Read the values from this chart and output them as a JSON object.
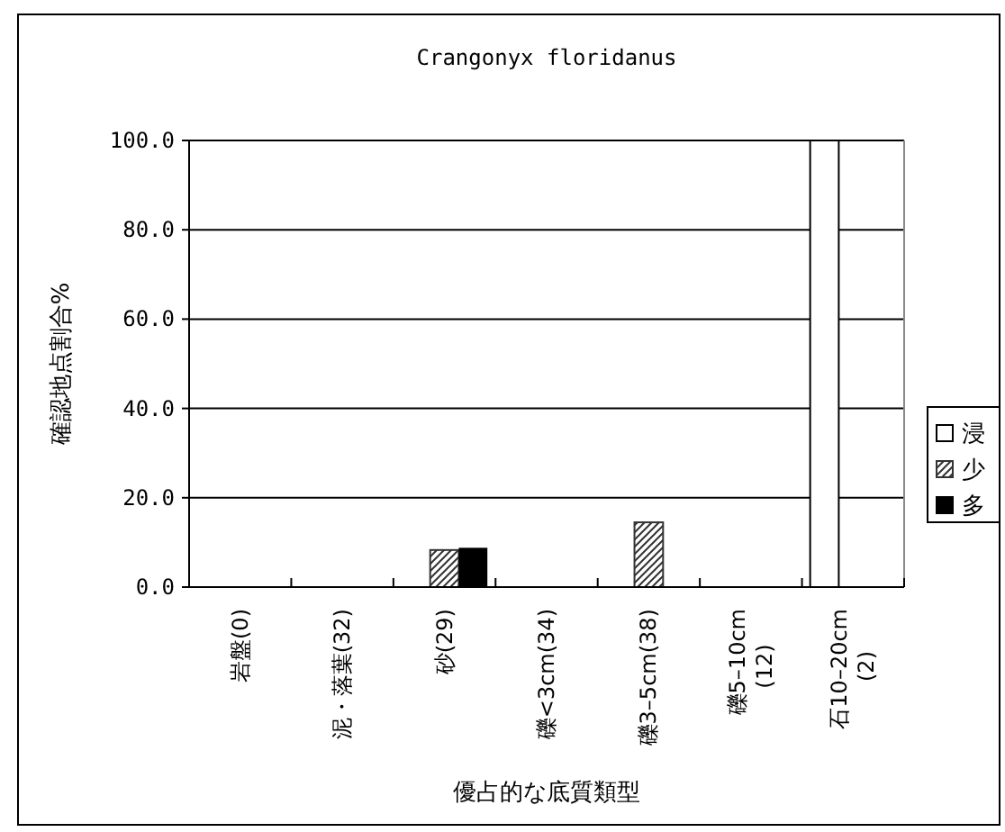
{
  "chart_data": {
    "type": "bar",
    "title": "Crangonyx floridanus",
    "xlabel": "優占的な底質類型",
    "ylabel": "確認地点割合%",
    "categories": [
      "岩盤(0)",
      "泥・落葉(32)",
      "砂(29)",
      "礫<3cm(34)",
      "礫3–5cm(38)",
      "礫5–10cm\n(12)",
      "石10–20cm\n(2)"
    ],
    "series": [
      {
        "name": "浸",
        "color": "#ffffff",
        "values": [
          0,
          0,
          0,
          0,
          0,
          0,
          100
        ]
      },
      {
        "name": "少",
        "color": "#333333",
        "values": [
          0,
          0,
          8.3,
          0,
          14.5,
          0,
          0
        ]
      },
      {
        "name": "多",
        "color": "#000000",
        "values": [
          0,
          0,
          8.8,
          0,
          0,
          0,
          0
        ]
      }
    ],
    "ylim": [
      0,
      100
    ],
    "yticks": [
      {
        "value": 0,
        "label": "0.0"
      },
      {
        "value": 20,
        "label": "20.0"
      },
      {
        "value": 40,
        "label": "40.0"
      },
      {
        "value": 60,
        "label": "60.0"
      },
      {
        "value": 80,
        "label": "80.0"
      },
      {
        "value": 100,
        "label": "100.0"
      }
    ],
    "grid": "y",
    "legend": "right"
  }
}
